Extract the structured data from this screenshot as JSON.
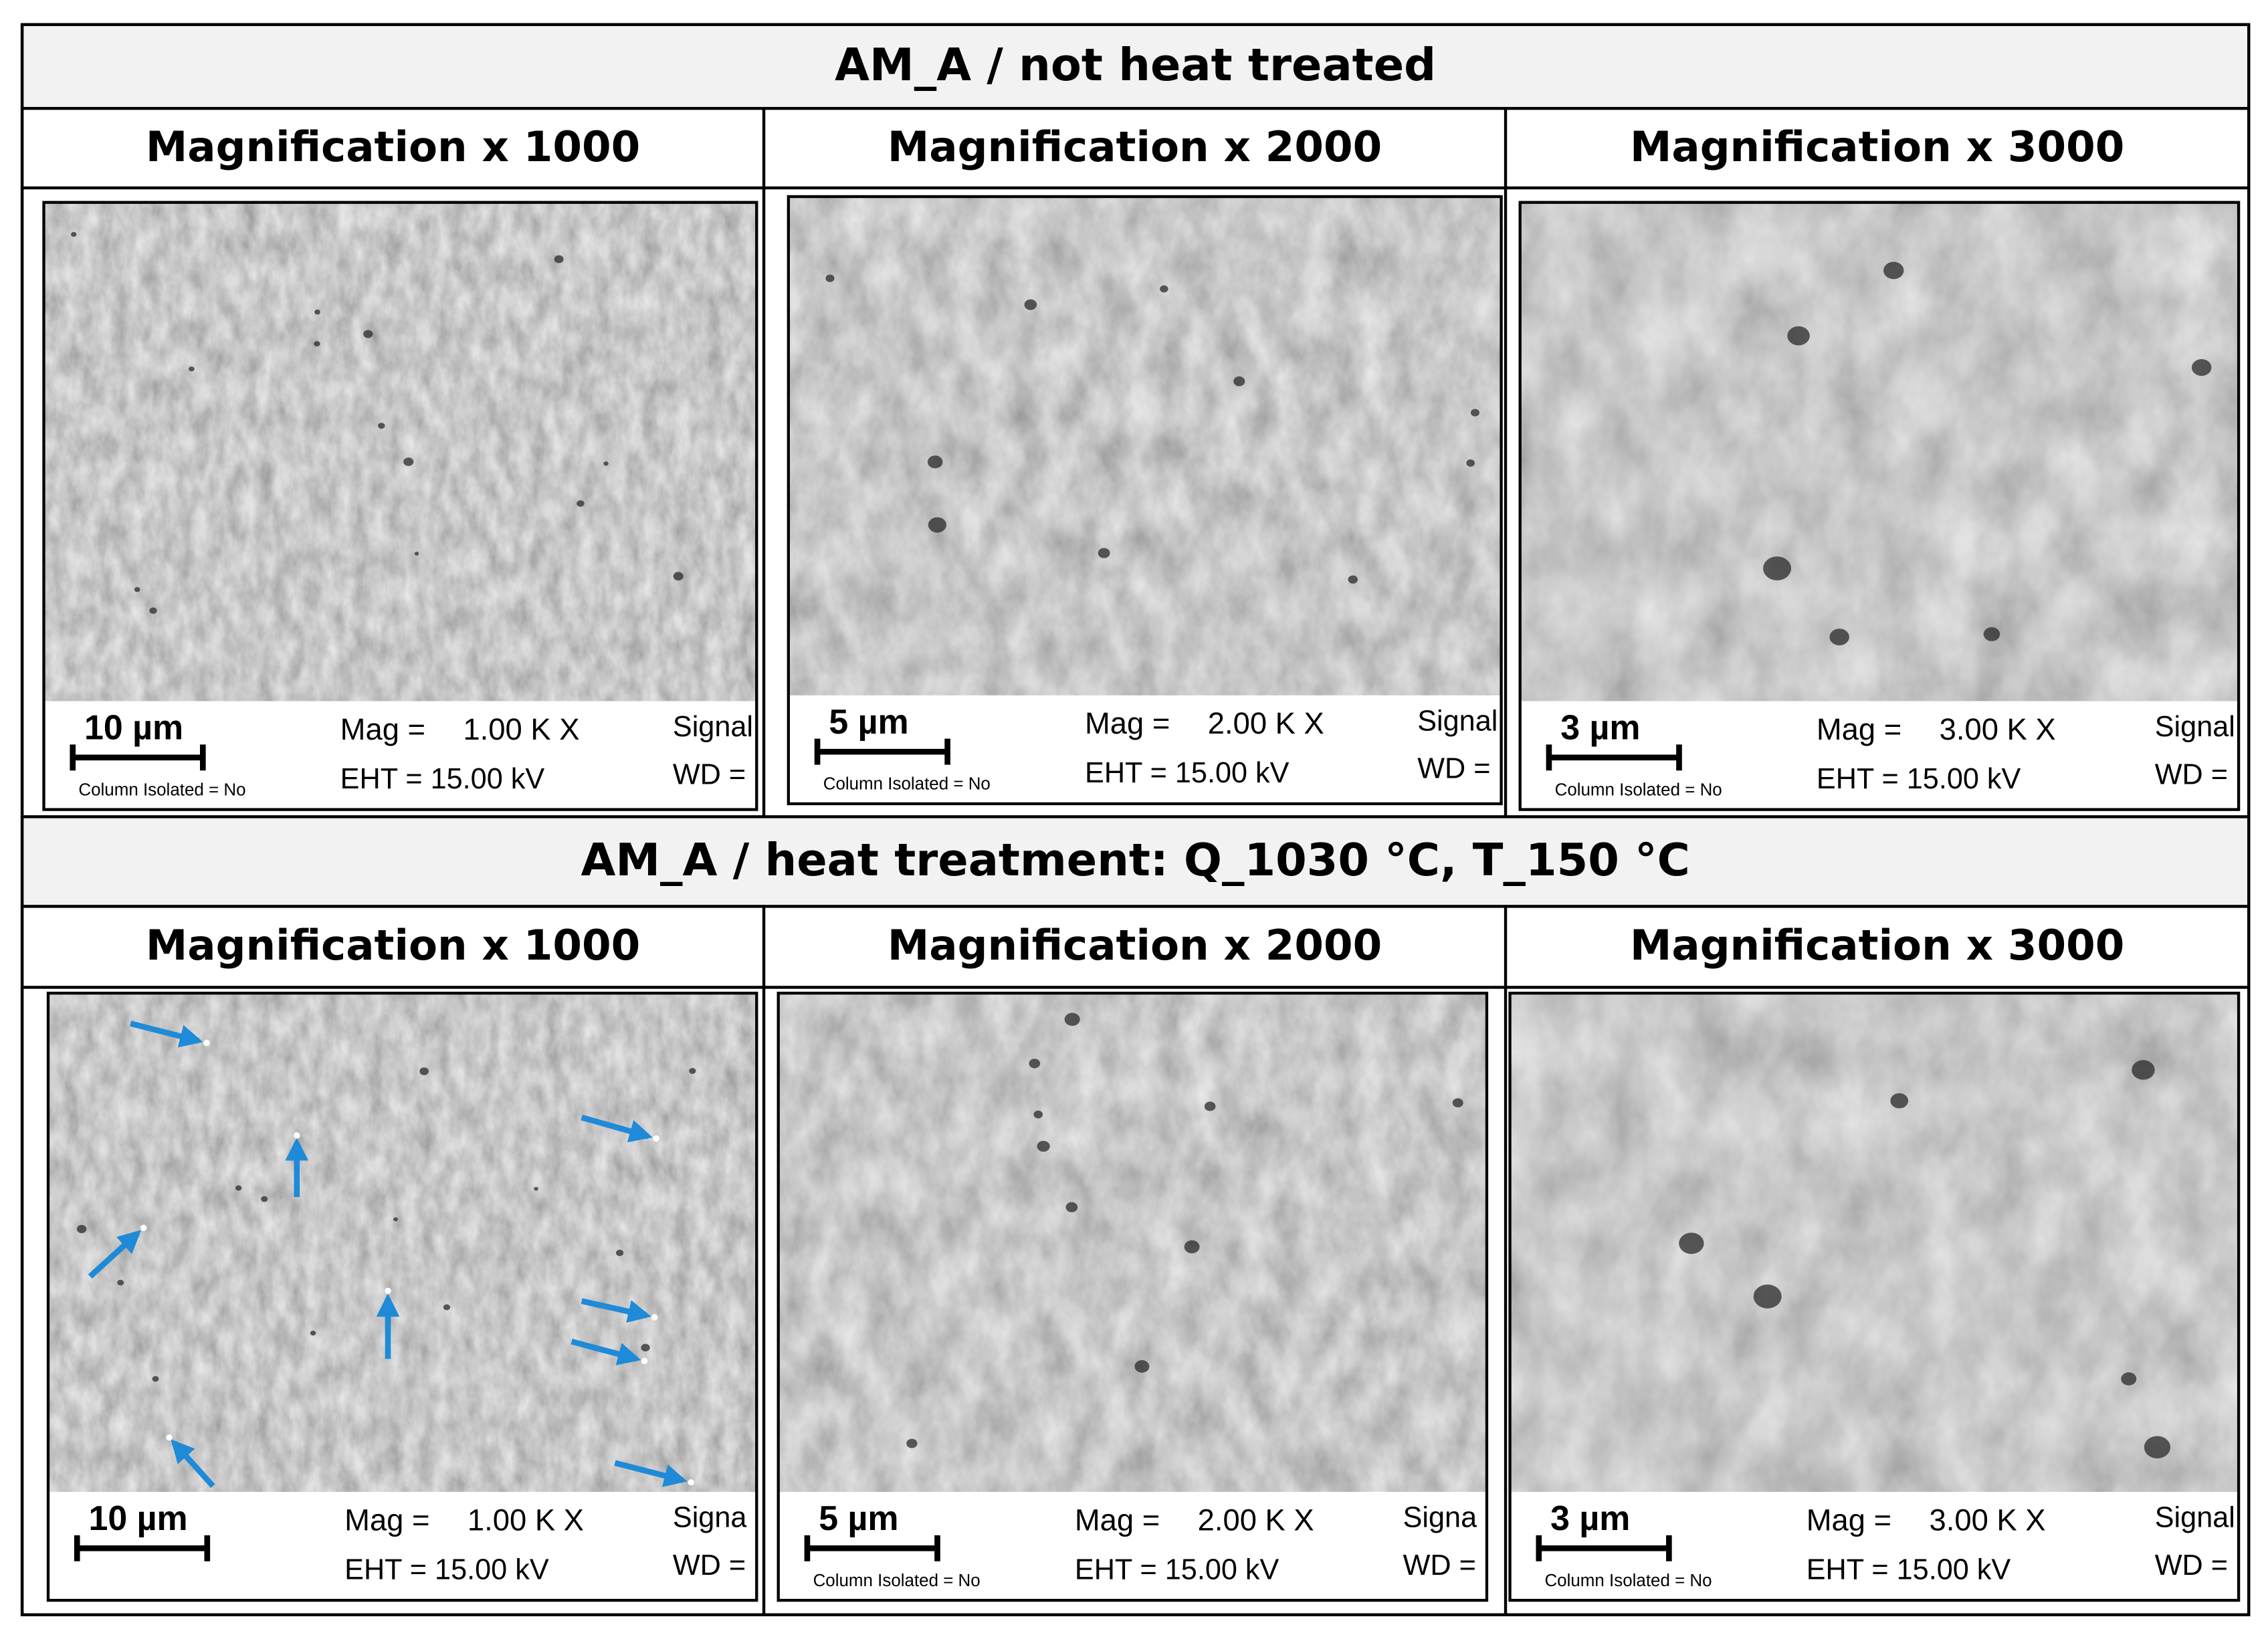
{
  "sections": [
    {
      "title": "AM_A / not heat treated",
      "panels": [
        {
          "heading": "Magnification x 1000",
          "scale_bar": "10 µm",
          "mag_label": "Mag =",
          "mag": "1.00 K X",
          "eht": "EHT = 15.00 kV",
          "signal": "Signal",
          "wd": "WD =",
          "column": "Column Isolated = No"
        },
        {
          "heading": "Magnification x 2000",
          "scale_bar": "5 µm",
          "mag_label": "Mag =",
          "mag": "2.00 K X",
          "eht": "EHT = 15.00 kV",
          "signal": "Signal",
          "wd": "WD =",
          "column": "Column Isolated = No"
        },
        {
          "heading": "Magnification x 3000",
          "scale_bar": "3 µm",
          "mag_label": "Mag =",
          "mag": "3.00 K X",
          "eht": "EHT = 15.00 kV",
          "signal": "Signal",
          "wd": "WD =",
          "column": "Column Isolated = No"
        }
      ]
    },
    {
      "title": "AM_A / heat treatment: Q_1030 °C, T_150 °C",
      "panels": [
        {
          "heading": "Magnification x 1000",
          "scale_bar": "10 µm",
          "mag_label": "Mag =",
          "mag": "1.00 K X",
          "eht": "EHT = 15.00 kV",
          "signal": "Signa",
          "wd": "WD ="
        },
        {
          "heading": "Magnification x 2000",
          "scale_bar": "5 µm",
          "mag_label": "Mag =",
          "mag": "2.00 K X",
          "eht": "EHT = 15.00 kV",
          "signal": "Signa",
          "wd": "WD =",
          "column": "Column Isolated = No"
        },
        {
          "heading": "Magnification x 3000",
          "scale_bar": "3 µm",
          "mag_label": "Mag =",
          "mag": "3.00 K X",
          "eht": "EHT = 15.00 kV",
          "signal": "Signal /",
          "wd": "WD =",
          "column": "Column Isolated = No"
        }
      ]
    }
  ]
}
